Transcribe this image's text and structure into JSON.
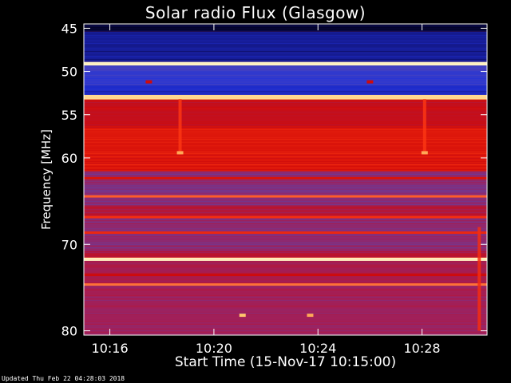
{
  "chart_data": {
    "type": "heatmap",
    "title": "Solar radio Flux (Glasgow)",
    "xlabel": "Start Time (15-Nov-17 10:15:00)",
    "ylabel": "Frequency [MHz]",
    "footer": "Updated Thu Feb 22 04:28:03 2018",
    "x_ticks": [
      {
        "label": "10:16",
        "minutes": 1
      },
      {
        "label": "10:20",
        "minutes": 5
      },
      {
        "label": "10:24",
        "minutes": 9
      },
      {
        "label": "10:28",
        "minutes": 13
      }
    ],
    "x_range_minutes": [
      0,
      15.5
    ],
    "y_range_mhz": [
      44.5,
      80.5
    ],
    "y_ticks": [
      {
        "label": "45",
        "mhz": 45
      },
      {
        "label": "50",
        "mhz": 50
      },
      {
        "label": "55",
        "mhz": 55
      },
      {
        "label": "60",
        "mhz": 60
      },
      {
        "label": "70",
        "mhz": 70
      },
      {
        "label": "80",
        "mhz": 80
      }
    ],
    "colormap": [
      "#000010",
      "#10106e",
      "#2030d8",
      "#5048b8",
      "#a0205a",
      "#d00a08",
      "#ff3a14",
      "#ffc468",
      "#fffcd8"
    ],
    "bands": [
      {
        "from": 44.5,
        "to": 45.4,
        "level": 0.05
      },
      {
        "from": 45.4,
        "to": 48.9,
        "level": 0.17
      },
      {
        "from": 48.9,
        "to": 49.3,
        "level": 0.97
      },
      {
        "from": 49.3,
        "to": 49.8,
        "level": 0.33
      },
      {
        "from": 49.8,
        "to": 51.6,
        "level": 0.3
      },
      {
        "from": 51.6,
        "to": 52.7,
        "level": 0.23
      },
      {
        "from": 52.7,
        "to": 53.2,
        "level": 0.92
      },
      {
        "from": 53.2,
        "to": 56.5,
        "level": 0.6
      },
      {
        "from": 56.5,
        "to": 61.5,
        "level": 0.66
      },
      {
        "from": 61.5,
        "to": 65.5,
        "level": 0.46
      },
      {
        "from": 65.5,
        "to": 67.0,
        "level": 0.55
      },
      {
        "from": 67.0,
        "to": 70.8,
        "level": 0.47
      },
      {
        "from": 70.8,
        "to": 71.5,
        "level": 0.55
      },
      {
        "from": 71.5,
        "to": 71.9,
        "level": 0.95
      },
      {
        "from": 71.9,
        "to": 74.5,
        "level": 0.52
      },
      {
        "from": 74.5,
        "to": 80.5,
        "level": 0.5
      }
    ],
    "lines": [
      {
        "mhz": 64.4,
        "level": 0.78
      },
      {
        "mhz": 66.8,
        "level": 0.72
      },
      {
        "mhz": 68.6,
        "level": 0.7
      },
      {
        "mhz": 74.6,
        "level": 0.8
      },
      {
        "mhz": 62.3,
        "level": 0.65
      },
      {
        "mhz": 73.5,
        "level": 0.62
      }
    ],
    "bursts": [
      {
        "minutes": 3.7,
        "mhz_from": 53.2,
        "mhz_to": 59.6,
        "level": 0.74
      },
      {
        "minutes": 13.1,
        "mhz_from": 53.2,
        "mhz_to": 59.6,
        "level": 0.74
      },
      {
        "minutes": 15.2,
        "mhz_from": 68.0,
        "mhz_to": 80.0,
        "level": 0.72
      }
    ],
    "spots": [
      {
        "minutes": 3.7,
        "mhz": 59.4,
        "level": 0.85
      },
      {
        "minutes": 13.1,
        "mhz": 59.4,
        "level": 0.85
      },
      {
        "minutes": 6.1,
        "mhz": 78.2,
        "level": 0.88
      },
      {
        "minutes": 8.7,
        "mhz": 78.2,
        "level": 0.85
      },
      {
        "minutes": 2.5,
        "mhz": 51.2,
        "level": 0.62
      },
      {
        "minutes": 11.0,
        "mhz": 51.2,
        "level": 0.62
      }
    ]
  }
}
